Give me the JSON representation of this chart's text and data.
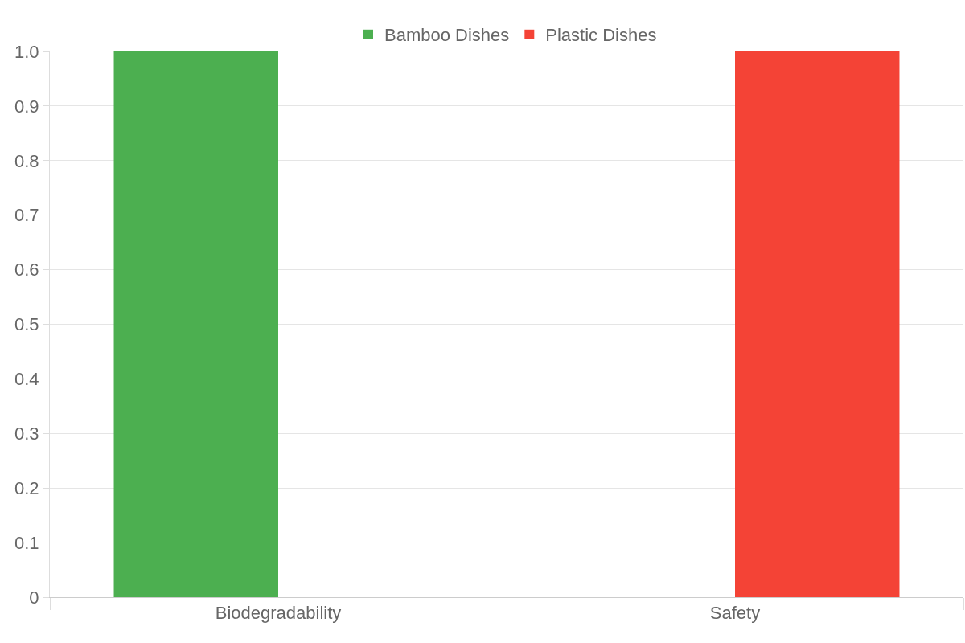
{
  "chart_data": {
    "type": "bar",
    "categories": [
      "Biodegradability",
      "Safety"
    ],
    "series": [
      {
        "name": "Bamboo Dishes",
        "color": "#4caf50",
        "values": [
          1,
          0
        ]
      },
      {
        "name": "Plastic Dishes",
        "color": "#f44336",
        "values": [
          0,
          1
        ]
      }
    ],
    "ylim": [
      0,
      1
    ],
    "yticks": [
      0,
      0.1,
      0.2,
      0.3,
      0.4,
      0.5,
      0.6,
      0.7,
      0.8,
      0.9,
      {
        "value": 1,
        "label": "1.0"
      }
    ],
    "grid": "y",
    "legend": "top"
  }
}
